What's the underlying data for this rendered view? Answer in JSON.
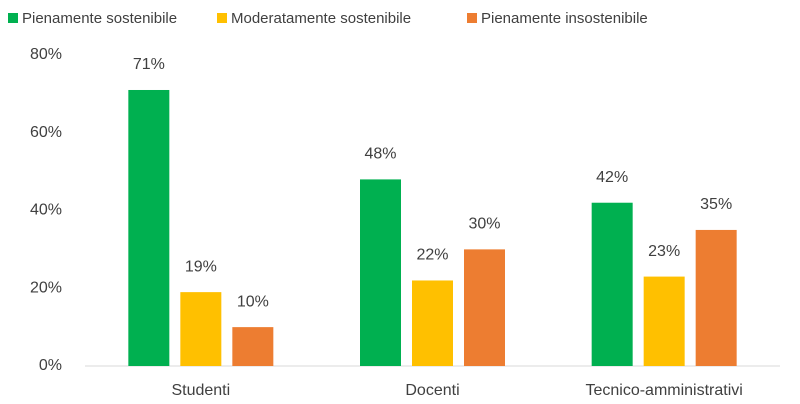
{
  "chart_data": {
    "type": "bar",
    "categories": [
      "Studenti",
      "Docenti",
      "Tecnico-amministrativi"
    ],
    "series": [
      {
        "name": "Pienamente sostenibile",
        "color": "#00b050",
        "values": [
          71,
          48,
          42
        ],
        "value_labels": [
          "71%",
          "48%",
          "42%"
        ]
      },
      {
        "name": "Moderatamente sostenibile",
        "color": "#ffc000",
        "values": [
          19,
          22,
          23
        ],
        "value_labels": [
          "19%",
          "22%",
          "23%"
        ]
      },
      {
        "name": "Pienamente insostenibile",
        "color": "#ed7d31",
        "values": [
          10,
          30,
          35
        ],
        "value_labels": [
          "10%",
          "30%",
          "35%"
        ]
      }
    ],
    "ylim": [
      0,
      80
    ],
    "yticks": [
      {
        "value": 0,
        "label": "0%"
      },
      {
        "value": 20,
        "label": "20%"
      },
      {
        "value": 40,
        "label": "40%"
      },
      {
        "value": 60,
        "label": "60%"
      },
      {
        "value": 80,
        "label": "80%"
      }
    ],
    "grid": false,
    "legend": "top"
  }
}
